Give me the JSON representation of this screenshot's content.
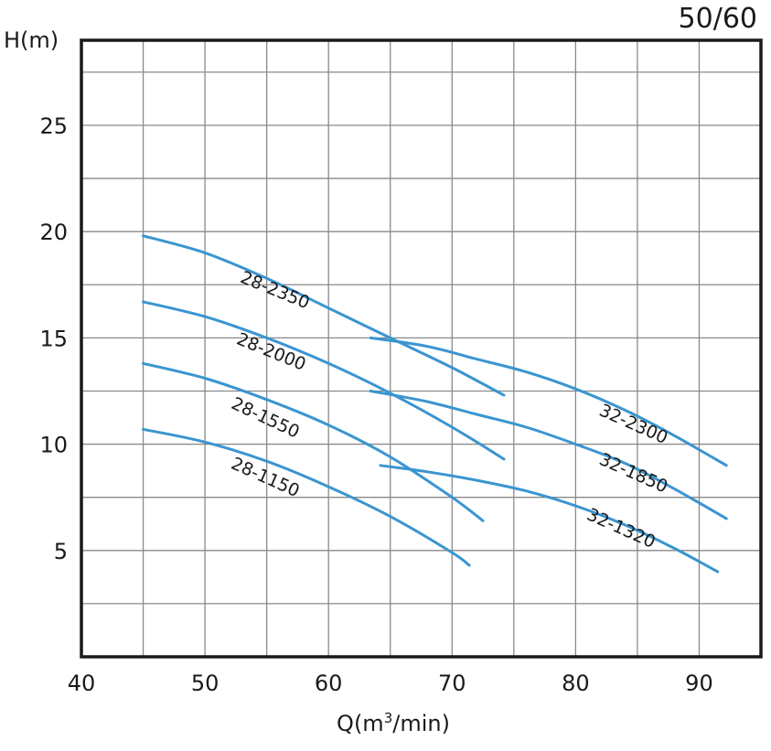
{
  "corner_label": "50/60",
  "chart_data": {
    "type": "line",
    "xlabel_main": "Q(m",
    "xlabel_sup": "3",
    "xlabel_tail": "/min)",
    "ylabel": "H(m)",
    "xlim": [
      40,
      95
    ],
    "ylim": [
      0,
      29
    ],
    "x_ticks": [
      40,
      50,
      60,
      70,
      80,
      90
    ],
    "y_ticks": [
      5,
      10,
      15,
      20,
      25
    ],
    "x_grid": [
      45,
      50,
      55,
      60,
      65,
      70,
      75,
      80,
      85,
      90
    ],
    "y_grid": [
      2.5,
      5,
      7.5,
      10,
      12.5,
      15,
      17.5,
      20,
      22.5,
      25,
      27.5
    ],
    "grid": true,
    "line_color": "#3a95d0",
    "series": [
      {
        "name": "28-2350",
        "points": [
          [
            45,
            19.8
          ],
          [
            50,
            19.0
          ],
          [
            55,
            17.8
          ],
          [
            60,
            16.4
          ],
          [
            65,
            15.0
          ],
          [
            70,
            13.6
          ],
          [
            74.2,
            12.3
          ]
        ],
        "label_at": [
          55.5,
          17.0
        ],
        "label_angle": 22
      },
      {
        "name": "28-2000",
        "points": [
          [
            45,
            16.7
          ],
          [
            50,
            16.0
          ],
          [
            55,
            15.0
          ],
          [
            60,
            13.8
          ],
          [
            65,
            12.4
          ],
          [
            70,
            10.8
          ],
          [
            74.2,
            9.3
          ]
        ],
        "label_at": [
          55.2,
          14.1
        ],
        "label_angle": 22
      },
      {
        "name": "28-1550",
        "points": [
          [
            45,
            13.8
          ],
          [
            50,
            13.1
          ],
          [
            55,
            12.1
          ],
          [
            60,
            10.9
          ],
          [
            65,
            9.4
          ],
          [
            70,
            7.5
          ],
          [
            72.5,
            6.4
          ]
        ],
        "label_at": [
          54.7,
          11.0
        ],
        "label_angle": 25
      },
      {
        "name": "28-1150",
        "points": [
          [
            45,
            10.7
          ],
          [
            50,
            10.1
          ],
          [
            55,
            9.2
          ],
          [
            60,
            8.0
          ],
          [
            65,
            6.6
          ],
          [
            70,
            4.9
          ],
          [
            71.4,
            4.3
          ]
        ],
        "label_at": [
          54.7,
          8.2
        ],
        "label_angle": 24
      },
      {
        "name": "32-2300",
        "points": [
          [
            63.4,
            15.0
          ],
          [
            68,
            14.6
          ],
          [
            72,
            14.0
          ],
          [
            76,
            13.4
          ],
          [
            80,
            12.6
          ],
          [
            84,
            11.6
          ],
          [
            88,
            10.4
          ],
          [
            92.2,
            9.0
          ]
        ],
        "label_at": [
          84.5,
          10.7
        ],
        "label_angle": 24
      },
      {
        "name": "32-1850",
        "points": [
          [
            63.4,
            12.5
          ],
          [
            68,
            12.0
          ],
          [
            72,
            11.4
          ],
          [
            76,
            10.8
          ],
          [
            80,
            10.0
          ],
          [
            84,
            9.1
          ],
          [
            88,
            7.9
          ],
          [
            92.2,
            6.5
          ]
        ],
        "label_at": [
          84.5,
          8.4
        ],
        "label_angle": 24
      },
      {
        "name": "32-1320",
        "points": [
          [
            64.2,
            9.0
          ],
          [
            68,
            8.7
          ],
          [
            72,
            8.3
          ],
          [
            76,
            7.8
          ],
          [
            80,
            7.1
          ],
          [
            84,
            6.2
          ],
          [
            88,
            5.1
          ],
          [
            91.5,
            4.0
          ]
        ],
        "label_at": [
          83.5,
          5.8
        ],
        "label_angle": 24
      }
    ]
  }
}
